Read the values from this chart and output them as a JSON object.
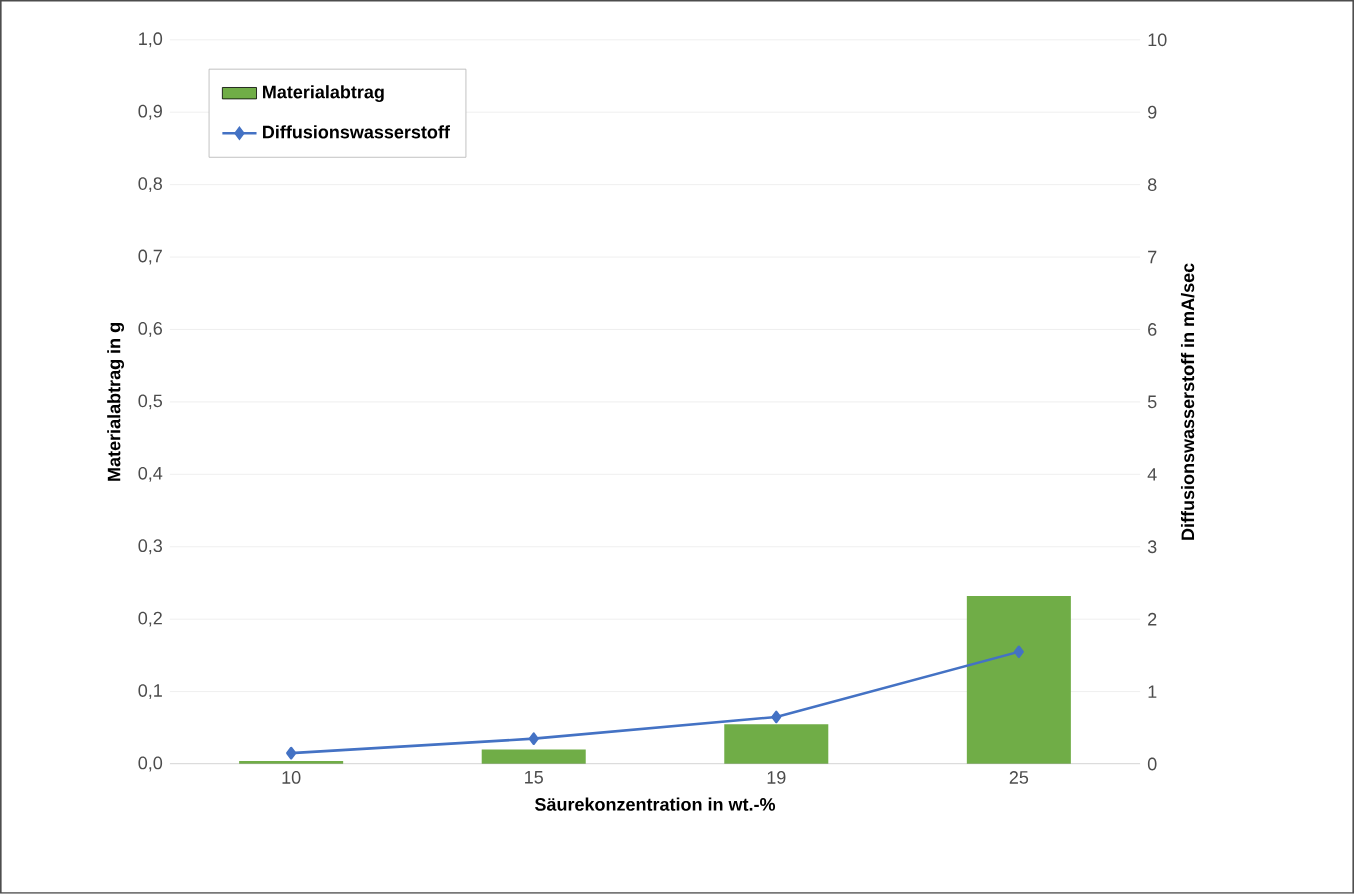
{
  "chart_data": {
    "type": "bar",
    "xlabel": "Säurekonzentration in wt.-%",
    "ylabel": "Materialabtrag in g",
    "y2label": "Diffusionswasserstoff  in mA/sec",
    "categories": [
      "10",
      "15",
      "19",
      "25"
    ],
    "series": [
      {
        "name": "Materialabtrag",
        "color": "#70ad47",
        "values": [
          0.004,
          0.02,
          0.055,
          0.232
        ]
      },
      {
        "name": "Diffusionswasserstoff",
        "type": "line",
        "axis": "y2",
        "color": "#4472c4",
        "values": [
          0.15,
          0.35,
          0.65,
          1.55
        ]
      }
    ],
    "ylim": [
      0,
      1
    ],
    "yticks": [
      {
        "value": 0,
        "label": "0,0"
      },
      {
        "value": 0.1,
        "label": "0,1"
      },
      {
        "value": 0.2,
        "label": "0,2"
      },
      {
        "value": 0.3,
        "label": "0,3"
      },
      {
        "value": 0.4,
        "label": "0,4"
      },
      {
        "value": 0.5,
        "label": "0,5"
      },
      {
        "value": 0.6,
        "label": "0,6"
      },
      {
        "value": 0.7,
        "label": "0,7"
      },
      {
        "value": 0.8,
        "label": "0,8"
      },
      {
        "value": 0.9,
        "label": "0,9"
      },
      {
        "value": 1,
        "label": "1,0"
      }
    ],
    "y2lim": [
      0,
      10
    ],
    "y2ticks": [
      0,
      1,
      2,
      3,
      4,
      5,
      6,
      7,
      8,
      9,
      10
    ],
    "grid": "y",
    "legend": "top left",
    "marker": "diamond",
    "line_style": "solid"
  }
}
